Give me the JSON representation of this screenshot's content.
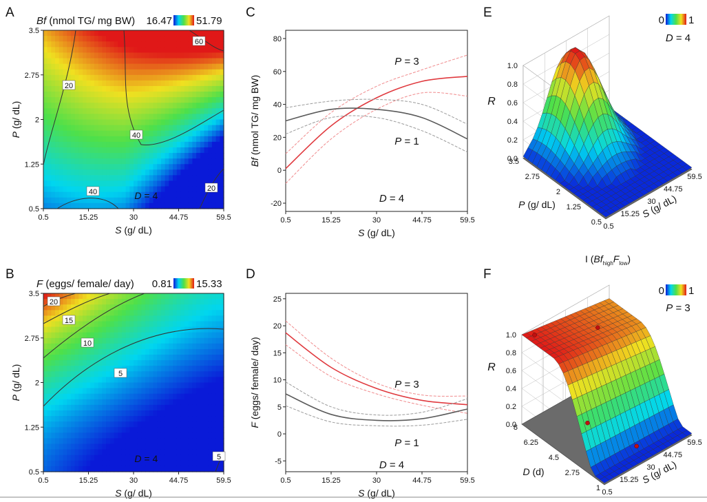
{
  "figure": {
    "colors": {
      "red": "#e0393e",
      "red_light": "#f08a8c",
      "gray": "#5a5a5a",
      "gray_light": "#9a9a9a",
      "floor": "#6b6b6b"
    }
  },
  "chart_data": [
    {
      "panel": "A",
      "type": "heatmap",
      "title": "Bf (nmol TG/ mg BW)",
      "title_italic": "Bf",
      "title_rest": " (nmol TG/ mg BW)",
      "colorbar": {
        "min": "16.47",
        "max": "51.79"
      },
      "x": {
        "label": "S (g/ dL)",
        "var": "S",
        "unit": " (g/ dL)",
        "ticks": [
          "0.5",
          "15.25",
          "30",
          "44.75",
          "59.5"
        ],
        "range": [
          0.5,
          59.5
        ]
      },
      "y": {
        "label": "P (g/ dL)",
        "var": "P",
        "unit": " (g/ dL)",
        "ticks": [
          "0.5",
          "1.25",
          "2",
          "2.75",
          "3.5"
        ],
        "range": [
          0.5,
          3.5
        ]
      },
      "contour_labels": [
        "20",
        "40",
        "40",
        "60",
        "20"
      ],
      "annotation": {
        "var": "D",
        "value": " = 4"
      }
    },
    {
      "panel": "B",
      "type": "heatmap",
      "title": "F (eggs/ female/ day)",
      "title_italic": "F",
      "title_rest": " (eggs/ female/ day)",
      "colorbar": {
        "min": "0.81",
        "max": "15.33"
      },
      "x": {
        "label": "S (g/ dL)",
        "var": "S",
        "unit": " (g/ dL)",
        "ticks": [
          "0.5",
          "15.25",
          "30",
          "44.75",
          "59.5"
        ],
        "range": [
          0.5,
          59.5
        ]
      },
      "y": {
        "label": "P (g/ dL)",
        "var": "P",
        "unit": " (g/ dL)",
        "ticks": [
          "0.5",
          "1.25",
          "2",
          "2.75",
          "3.5"
        ],
        "range": [
          0.5,
          3.5
        ]
      },
      "contour_labels": [
        "20",
        "15",
        "10",
        "5",
        "5"
      ],
      "annotation": {
        "var": "D",
        "value": " = 4"
      }
    },
    {
      "panel": "C",
      "type": "line",
      "ylabel": "Bf (nmol TG/ mg BW)",
      "ylabel_italic": "Bf",
      "ylabel_rest": " (nmol TG/ mg BW)",
      "xlabel": "S (g/ dL)",
      "x_ticks": [
        "0.5",
        "15.25",
        "30",
        "44.75",
        "59.5"
      ],
      "xlim": [
        0.5,
        59.5
      ],
      "y_ticks": [
        "-20",
        "0",
        "20",
        "40",
        "60",
        "80"
      ],
      "ylim": [
        -25,
        85
      ],
      "x": [
        0.5,
        15.25,
        30,
        44.75,
        59.5
      ],
      "series": [
        {
          "name": "P = 3",
          "var": "P",
          "value": " = 3",
          "color": "red",
          "values": [
            1,
            27,
            44,
            54,
            57
          ],
          "lower": [
            -8,
            19,
            37,
            47,
            45
          ],
          "upper": [
            10,
            35,
            51,
            61,
            70
          ]
        },
        {
          "name": "P = 1",
          "var": "P",
          "value": " = 1",
          "color": "gray",
          "values": [
            30,
            37,
            37,
            32,
            19
          ],
          "lower": [
            22,
            32,
            32,
            24,
            11
          ],
          "upper": [
            38,
            42,
            43,
            40,
            28
          ]
        }
      ],
      "annotation": {
        "var": "D",
        "value": " = 4"
      }
    },
    {
      "panel": "D",
      "type": "line",
      "ylabel": "F (eggs/ female/ day)",
      "ylabel_italic": "F",
      "ylabel_rest": " (eggs/ female/ day)",
      "xlabel": "S (g/ dL)",
      "x_ticks": [
        "0.5",
        "15.25",
        "30",
        "44.75",
        "59.5"
      ],
      "xlim": [
        0.5,
        59.5
      ],
      "y_ticks": [
        "-5",
        "0",
        "5",
        "10",
        "15",
        "20",
        "25"
      ],
      "ylim": [
        -7,
        26
      ],
      "x": [
        0.5,
        15.25,
        30,
        44.75,
        59.5
      ],
      "series": [
        {
          "name": "P = 3",
          "var": "P",
          "value": " = 3",
          "color": "red",
          "values": [
            18.7,
            12.3,
            8.4,
            6.2,
            5.4
          ],
          "lower": [
            16.5,
            10.6,
            7.4,
            5.3,
            3.8
          ],
          "upper": [
            20.9,
            14.0,
            9.4,
            7.2,
            7.0
          ]
        },
        {
          "name": "P = 1",
          "var": "P",
          "value": " = 1",
          "color": "gray",
          "values": [
            7.4,
            3.6,
            2.5,
            2.8,
            4.6
          ],
          "lower": [
            5.2,
            2.2,
            1.5,
            1.6,
            2.7
          ],
          "upper": [
            9.6,
            5.0,
            3.5,
            4.0,
            6.5
          ]
        }
      ],
      "annotation": {
        "var": "D",
        "value": " = 4"
      }
    },
    {
      "panel": "E",
      "type": "surface",
      "zlabel": "R",
      "z_ticks": [
        "0.0",
        "0.2",
        "0.4",
        "0.6",
        "0.8",
        "1.0"
      ],
      "x": {
        "var": "S",
        "unit": " (g/ dL)",
        "ticks": [
          "0.5",
          "15.25",
          "30",
          "44.75",
          "59.5"
        ]
      },
      "y": {
        "var": "P",
        "unit": " (g/ dL)",
        "ticks": [
          "0.5",
          "1.25",
          "2",
          "2.75",
          "3.5"
        ]
      },
      "colorbar": {
        "min": "0",
        "max": "1"
      },
      "annotation": {
        "var": "D",
        "value": " = 4"
      },
      "peak": {
        "S": 30,
        "P": 3.0,
        "R": 1.0
      }
    },
    {
      "panel": "F",
      "type": "surface",
      "subtitle": "I (BfhighFlow)",
      "subtitle_parts": {
        "pre": "I (",
        "a": "Bf",
        "a_sub": "high",
        "b": "F",
        "b_sub": "low",
        "post": ")"
      },
      "zlabel": "R",
      "z_ticks": [
        "0.0",
        "0.2",
        "0.4",
        "0.6",
        "0.8",
        "1.0"
      ],
      "x": {
        "var": "S",
        "unit": " (g/ dL)",
        "ticks": [
          "0.5",
          "15.25",
          "30",
          "44.75",
          "59.5"
        ]
      },
      "y": {
        "var": "D",
        "unit": " (d)",
        "ticks": [
          "1",
          "2.75",
          "4.5",
          "6.25",
          "8"
        ]
      },
      "colorbar": {
        "min": "0",
        "max": "1"
      },
      "annotation": {
        "var": "P",
        "value": " = 3"
      },
      "points": [
        {
          "S": 5,
          "D": 7.5,
          "R": 1.0
        },
        {
          "S": 40,
          "D": 6.5,
          "R": 0.85
        },
        {
          "S": 5,
          "D": 3,
          "R": 0.45
        },
        {
          "S": 30,
          "D": 2,
          "R": 0.05
        }
      ]
    }
  ]
}
